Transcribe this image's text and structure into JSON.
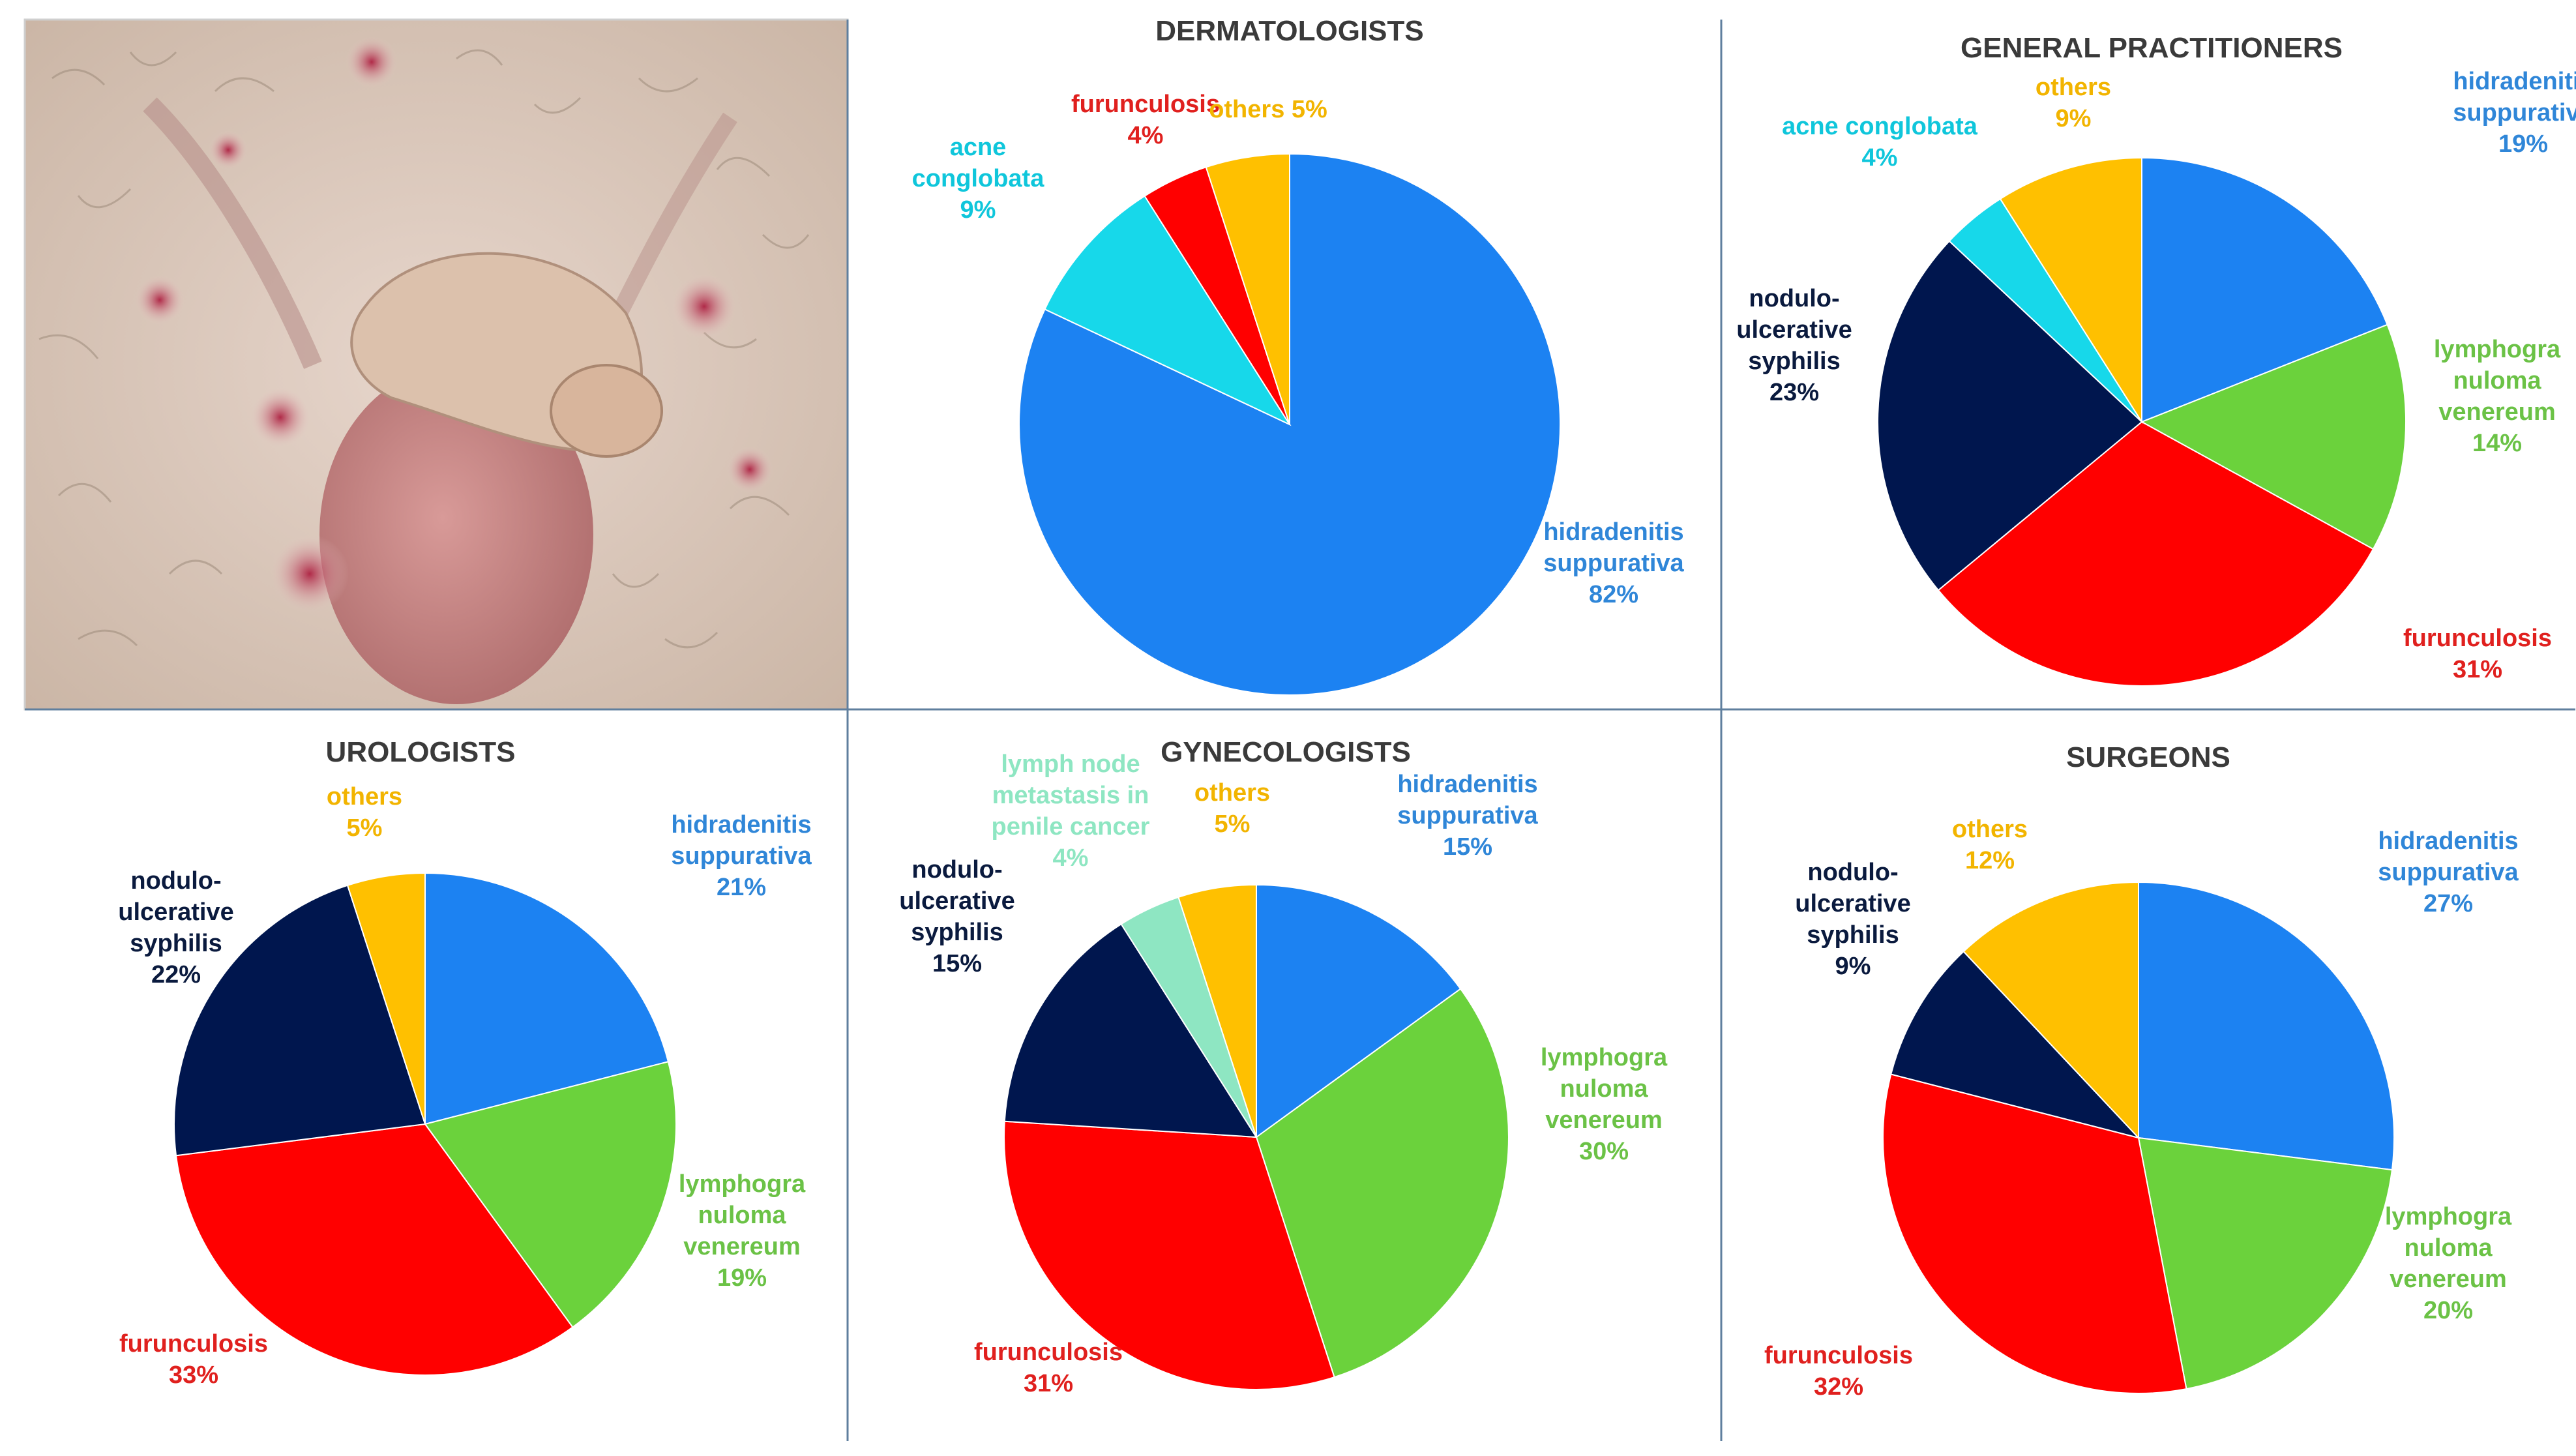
{
  "colors": {
    "hs": "#1c82f2",
    "acne": "#17d8ea",
    "furunculosis": "#ff0000",
    "others": "#ffc000",
    "syphilis": "#00164e",
    "lgv": "#6bd23c",
    "lymph": "#8ee6c2",
    "lbl_hs": "#2f86d8",
    "lbl_acne": "#0fc6db",
    "lbl_furunculosis": "#e0201e",
    "lbl_others": "#f2b400",
    "lbl_syphilis": "#0a1a3e",
    "lbl_lgv": "#6bc246",
    "lbl_lymph": "#8ee6c2"
  },
  "photo": {
    "icon": "clinical-photo"
  },
  "chart_data": [
    {
      "type": "pie",
      "title": "DERMATOLOGISTS",
      "start": "12 o'clock, clockwise",
      "slices": [
        {
          "key": "hs",
          "label": [
            "hidradenitis",
            "suppurativa"
          ],
          "pct_label": "82%",
          "value": 82
        },
        {
          "key": "acne",
          "label": [
            "acne",
            "conglobata"
          ],
          "pct_label": "9%",
          "value": 9
        },
        {
          "key": "furunculosis",
          "label": [
            "furunculosis"
          ],
          "pct_label": "4%",
          "value": 4
        },
        {
          "key": "others",
          "label": [],
          "pct_label": "others 5%",
          "value": 5
        }
      ]
    },
    {
      "type": "pie",
      "title": "GENERAL PRACTITIONERS",
      "start": "12 o'clock, clockwise",
      "slices": [
        {
          "key": "hs",
          "label": [
            "hidradenitis",
            "suppurativa"
          ],
          "pct_label": "19%",
          "value": 19
        },
        {
          "key": "lgv",
          "label": [
            "lymphogra",
            "nuloma",
            "venereum"
          ],
          "pct_label": "14%",
          "value": 14
        },
        {
          "key": "furunculosis",
          "label": [
            "furunculosis"
          ],
          "pct_label": "31%",
          "value": 31
        },
        {
          "key": "syphilis",
          "label": [
            "nodulo-",
            "ulcerative",
            "syphilis"
          ],
          "pct_label": "23%",
          "value": 23
        },
        {
          "key": "acne",
          "label": [
            "acne conglobata"
          ],
          "pct_label": "4%",
          "value": 4
        },
        {
          "key": "others",
          "label": [
            "others"
          ],
          "pct_label": "9%",
          "value": 9
        }
      ]
    },
    {
      "type": "pie",
      "title": "UROLOGISTS",
      "start": "12 o'clock, clockwise",
      "slices": [
        {
          "key": "hs",
          "label": [
            "hidradenitis",
            "suppurativa"
          ],
          "pct_label": "21%",
          "value": 21
        },
        {
          "key": "lgv",
          "label": [
            "lymphogra",
            "nuloma",
            "venereum"
          ],
          "pct_label": "19%",
          "value": 19
        },
        {
          "key": "furunculosis",
          "label": [
            "furunculosis"
          ],
          "pct_label": "33%",
          "value": 33
        },
        {
          "key": "syphilis",
          "label": [
            "nodulo-",
            "ulcerative",
            "syphilis"
          ],
          "pct_label": "22%",
          "value": 22
        },
        {
          "key": "others",
          "label": [
            "others"
          ],
          "pct_label": "5%",
          "value": 5
        }
      ]
    },
    {
      "type": "pie",
      "title": "GYNECOLOGISTS",
      "start": "12 o'clock, clockwise",
      "slices": [
        {
          "key": "hs",
          "label": [
            "hidradenitis",
            "suppurativa"
          ],
          "pct_label": "15%",
          "value": 15
        },
        {
          "key": "lgv",
          "label": [
            "lymphogra",
            "nuloma",
            "venereum"
          ],
          "pct_label": "30%",
          "value": 30
        },
        {
          "key": "furunculosis",
          "label": [
            "furunculosis"
          ],
          "pct_label": "31%",
          "value": 31
        },
        {
          "key": "syphilis",
          "label": [
            "nodulo-",
            "ulcerative",
            "syphilis"
          ],
          "pct_label": "15%",
          "value": 15
        },
        {
          "key": "lymph",
          "label": [
            "lymph node",
            "metastasis in",
            "penile cancer"
          ],
          "pct_label": "4%",
          "value": 4
        },
        {
          "key": "others",
          "label": [
            "others"
          ],
          "pct_label": "5%",
          "value": 5
        }
      ]
    },
    {
      "type": "pie",
      "title": "SURGEONS",
      "start": "12 o'clock, clockwise",
      "slices": [
        {
          "key": "hs",
          "label": [
            "hidradenitis",
            "suppurativa"
          ],
          "pct_label": "27%",
          "value": 27
        },
        {
          "key": "lgv",
          "label": [
            "lymphogra",
            "nuloma",
            "venereum"
          ],
          "pct_label": "20%",
          "value": 20
        },
        {
          "key": "furunculosis",
          "label": [
            "furunculosis"
          ],
          "pct_label": "32%",
          "value": 32
        },
        {
          "key": "syphilis",
          "label": [
            "nodulo-",
            "ulcerative",
            "syphilis"
          ],
          "pct_label": "9%",
          "value": 9
        },
        {
          "key": "others",
          "label": [
            "others"
          ],
          "pct_label": "12%",
          "value": 12
        }
      ]
    }
  ]
}
